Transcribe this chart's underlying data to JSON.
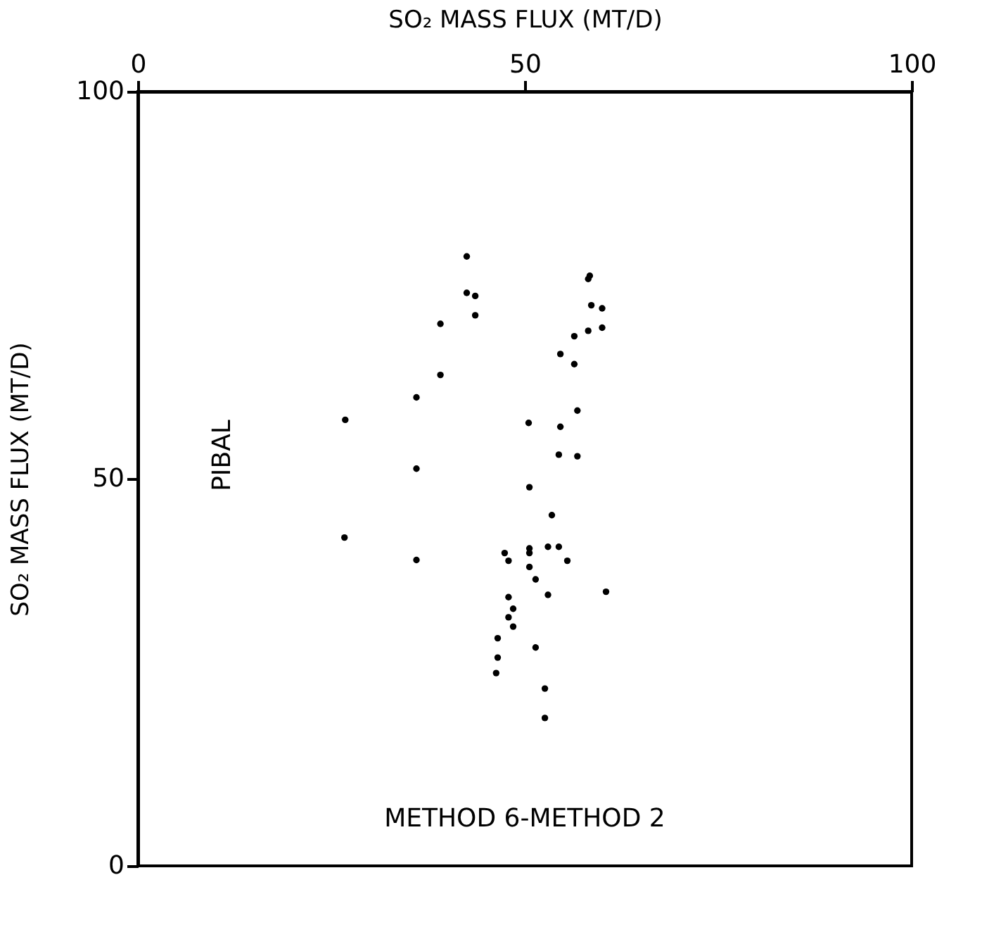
{
  "chart_data": {
    "type": "scatter",
    "xlabel": "SO₂ MASS FLUX (MT/D)",
    "ylabel": "SO₂ MASS FLUX (MT/D)",
    "xlim": [
      0,
      100
    ],
    "ylim": [
      0,
      100
    ],
    "xticks": [
      0,
      50,
      100
    ],
    "yticks": [
      0,
      50,
      100
    ],
    "grid": false,
    "legend": false,
    "marker": "circle",
    "annotations": [
      "PIBAL",
      "METHOD 6-METHOD 2"
    ],
    "series": [
      {
        "color": "#000000",
        "x": [
          26.8,
          36.0,
          36.0,
          39.1,
          39.1,
          42.5,
          42.5,
          43.6,
          43.6,
          58.4,
          58.2,
          58.6,
          60.0,
          60.0,
          58.2,
          56.4,
          54.6,
          56.4,
          56.8,
          50.5,
          54.6,
          54.4,
          56.8,
          50.6,
          53.5,
          26.7,
          36.0,
          47.4,
          47.9,
          50.6,
          50.6,
          50.6,
          53.0,
          54.4,
          55.5,
          51.4,
          53.0,
          60.5,
          47.9,
          48.5,
          47.9,
          48.5,
          46.5,
          51.4,
          46.5,
          46.3,
          52.6,
          52.6
        ],
        "values": [
          57.6,
          60.5,
          51.3,
          70.0,
          63.4,
          78.7,
          74.0,
          73.6,
          71.1,
          76.2,
          75.8,
          72.4,
          72.0,
          69.5,
          69.1,
          68.4,
          66.1,
          64.8,
          58.8,
          57.2,
          56.7,
          53.1,
          52.9,
          48.9,
          45.3,
          42.4,
          39.5,
          40.4,
          39.4,
          41.0,
          40.4,
          38.6,
          41.2,
          41.2,
          39.4,
          37.0,
          35.0,
          35.4,
          34.7,
          33.2,
          32.1,
          30.9,
          29.4,
          28.2,
          26.9,
          24.9,
          22.9,
          19.1
        ]
      }
    ]
  }
}
